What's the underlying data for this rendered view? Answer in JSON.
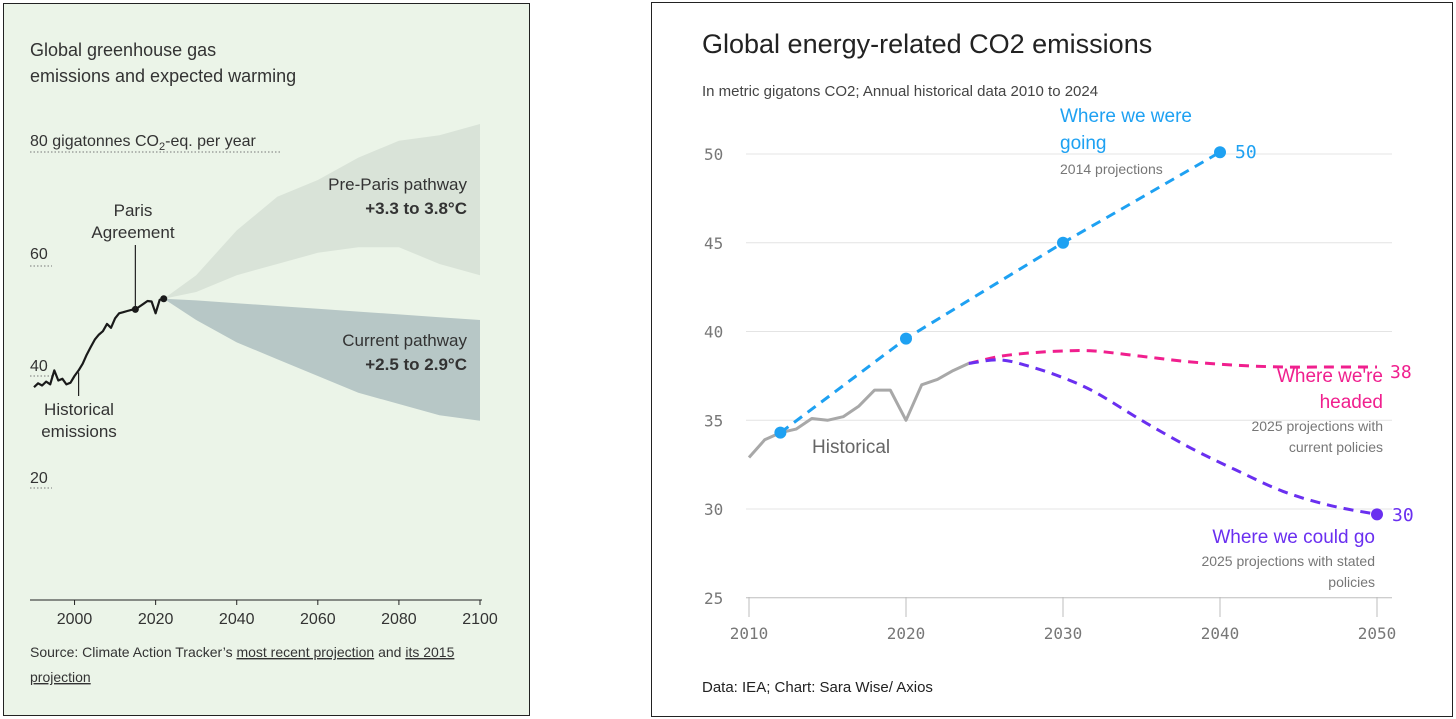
{
  "chart_data": [
    {
      "type": "area",
      "title": "Global greenhouse gas emissions and expected warming",
      "title_lines": [
        "Global greenhouse gas",
        "emissions and expected warming"
      ],
      "y_unit_label": "80 gigatonnes CO₂-eq. per year",
      "y_unit_parts": {
        "pre": "80 gigatonnes CO",
        "sub": "2",
        "post": "-eq. per year"
      },
      "y_ticks": [
        "60",
        "40",
        "20"
      ],
      "x_ticks": [
        "2000",
        "2020",
        "2040",
        "2060",
        "2080",
        "2100"
      ],
      "xlim": [
        1990,
        2100
      ],
      "ylim": [
        0,
        85
      ],
      "historical": {
        "years": [
          1990,
          1991,
          1992,
          1993,
          1994,
          1995,
          1996,
          1997,
          1998,
          1999,
          2000,
          2001,
          2002,
          2003,
          2004,
          2005,
          2006,
          2007,
          2008,
          2009,
          2010,
          2011,
          2012,
          2013,
          2014,
          2015,
          2016,
          2017,
          2018,
          2019,
          2020,
          2021,
          2022
        ],
        "values": [
          38.0,
          38.7,
          38.3,
          39.0,
          38.5,
          41.0,
          39.2,
          39.5,
          38.5,
          38.8,
          40.0,
          41.0,
          42.2,
          43.8,
          45.2,
          46.5,
          47.4,
          48.0,
          49.3,
          48.6,
          50.3,
          51.2,
          51.4,
          51.6,
          51.8,
          51.9,
          52.4,
          52.9,
          53.4,
          53.3,
          51.2,
          53.6,
          53.8
        ]
      },
      "pre_paris": {
        "name": "Pre-Paris pathway",
        "range_label": "+3.3 to 3.8°C",
        "years": [
          2022,
          2030,
          2040,
          2050,
          2060,
          2070,
          2080,
          2090,
          2100
        ],
        "low": [
          53.8,
          55,
          58,
          60,
          62,
          63,
          63,
          60,
          58
        ],
        "high": [
          53.8,
          58,
          66,
          72,
          75,
          79,
          82,
          83,
          85
        ]
      },
      "current": {
        "name": "Current pathway",
        "range_label": "+2.5 to 2.9°C",
        "years": [
          2022,
          2030,
          2040,
          2050,
          2060,
          2070,
          2080,
          2090,
          2100
        ],
        "low": [
          53.8,
          50,
          46,
          43,
          40,
          37,
          35,
          33,
          32
        ],
        "high": [
          53.8,
          53.5,
          53.0,
          52.5,
          52,
          51.5,
          51,
          50.5,
          50
        ]
      },
      "annotations": {
        "paris": {
          "lines": [
            "Paris",
            "Agreement"
          ],
          "year": 2015
        },
        "historical": {
          "lines": [
            "Historical",
            "emissions"
          ],
          "year": 2001
        }
      },
      "source": {
        "prefix": "Source: Climate Action Tracker’s ",
        "link1": "most recent projection",
        "middle": " and ",
        "link2": "its 2015",
        "link2b": "projection"
      }
    },
    {
      "type": "line",
      "title": "Global energy-related CO2 emissions",
      "subtitle": "In metric gigatons CO2; Annual historical data 2010 to 2024",
      "y_ticks": [
        50,
        45,
        40,
        35,
        30,
        25
      ],
      "x_ticks": [
        2010,
        2020,
        2030,
        2040,
        2050
      ],
      "xlim": [
        2010,
        2050
      ],
      "ylim": [
        25,
        51
      ],
      "series": [
        {
          "name": "Historical",
          "color": "#a8a8a8",
          "x": [
            2010,
            2011,
            2012,
            2013,
            2014,
            2015,
            2016,
            2017,
            2018,
            2019,
            2020,
            2021,
            2022,
            2023,
            2024
          ],
          "y": [
            32.9,
            33.9,
            34.3,
            34.5,
            35.1,
            35.0,
            35.2,
            35.8,
            36.7,
            36.7,
            35.0,
            37.0,
            37.3,
            37.8,
            38.2
          ]
        },
        {
          "name": "Where we were going",
          "label_lines": [
            "Where we were",
            "going"
          ],
          "note": "2014 projections",
          "end_label": "50",
          "color": "#1ea1f2",
          "x": [
            2012,
            2020,
            2030,
            2040
          ],
          "y": [
            34.3,
            39.6,
            45.0,
            50.1
          ]
        },
        {
          "name": "Where we're headed",
          "label_lines": [
            "Where we're",
            "headed"
          ],
          "note_lines": [
            "2025 projections with",
            "current policies"
          ],
          "end_label": "38",
          "color": "#f01f8e",
          "x": [
            2024,
            2026,
            2028,
            2030,
            2032,
            2035,
            2038,
            2041,
            2044,
            2047,
            2050
          ],
          "y": [
            38.2,
            38.6,
            38.8,
            38.9,
            38.9,
            38.6,
            38.3,
            38.1,
            38.0,
            38.0,
            38.0
          ]
        },
        {
          "name": "Where we could go",
          "label_lines": [
            "Where we could go"
          ],
          "note_lines": [
            "2025 projections with stated",
            "policies"
          ],
          "end_label": "30",
          "color": "#6a2ff0",
          "x": [
            2024,
            2026,
            2028,
            2030,
            2032,
            2035,
            2038,
            2041,
            2044,
            2047,
            2050
          ],
          "y": [
            38.2,
            38.4,
            38.0,
            37.4,
            36.6,
            35.0,
            33.5,
            32.2,
            31.0,
            30.2,
            29.7
          ]
        }
      ],
      "historical_label": "Historical",
      "credit": "Data: IEA; Chart: Sara Wise/ Axios"
    }
  ]
}
